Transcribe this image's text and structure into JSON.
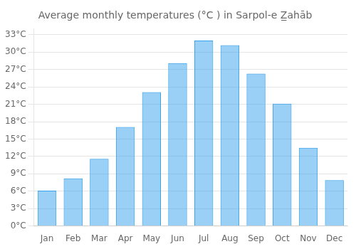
{
  "chart_data": {
    "type": "bar",
    "title": "Average monthly temperatures (°C ) in Sarpol-e Z̲ahāb",
    "categories": [
      "Jan",
      "Feb",
      "Mar",
      "Apr",
      "May",
      "Jun",
      "Jul",
      "Aug",
      "Sep",
      "Oct",
      "Nov",
      "Dec"
    ],
    "values": [
      6.1,
      8.2,
      11.6,
      17.1,
      23.1,
      28.1,
      32.0,
      31.2,
      26.3,
      21.1,
      13.5,
      7.9
    ],
    "ylim": [
      0,
      34
    ],
    "yticks": [
      {
        "value": 0,
        "label": "0°C"
      },
      {
        "value": 3,
        "label": "3°C"
      },
      {
        "value": 6,
        "label": "6°C"
      },
      {
        "value": 9,
        "label": "9°C"
      },
      {
        "value": 12,
        "label": "12°C"
      },
      {
        "value": 15,
        "label": "15°C"
      },
      {
        "value": 18,
        "label": "18°C"
      },
      {
        "value": 21,
        "label": "21°C"
      },
      {
        "value": 24,
        "label": "24°C"
      },
      {
        "value": 27,
        "label": "27°C"
      },
      {
        "value": 30,
        "label": "30°C"
      },
      {
        "value": 33,
        "label": "33°C"
      }
    ],
    "grid": true
  }
}
